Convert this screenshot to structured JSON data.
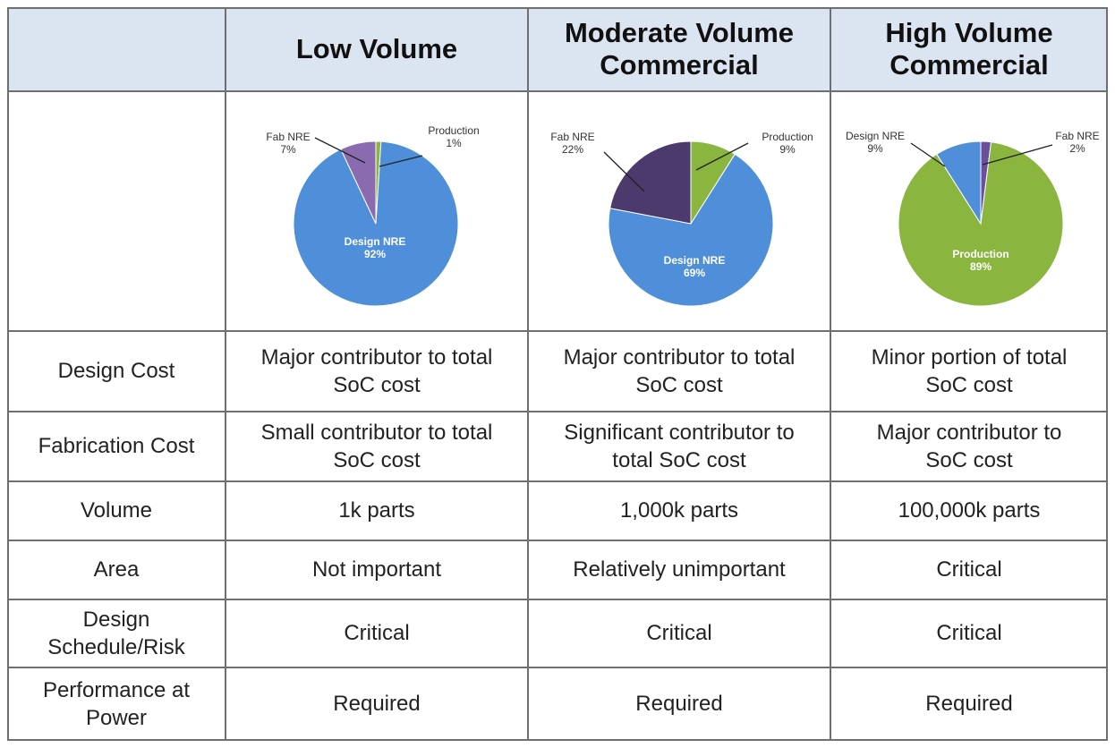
{
  "header": {
    "corner": "",
    "columns": [
      "Low Volume",
      "Moderate Volume Commercial",
      "High Volume Commercial"
    ]
  },
  "rows": [
    {
      "label": "Design Cost",
      "values": [
        "Major contributor to total SoC cost",
        "Major contributor to total SoC cost",
        "Minor portion of total SoC cost"
      ]
    },
    {
      "label": "Fabrication Cost",
      "values": [
        "Small contributor to total SoC cost",
        "Significant contributor to total SoC cost",
        "Major contributor to SoC cost"
      ]
    },
    {
      "label": "Volume",
      "values": [
        "1k parts",
        "1,000k parts",
        "100,000k parts"
      ]
    },
    {
      "label": "Area",
      "values": [
        "Not important",
        "Relatively unimportant",
        "Critical"
      ]
    },
    {
      "label": "Design Schedule/Risk",
      "values": [
        "Critical",
        "Critical",
        "Critical"
      ]
    },
    {
      "label": "Performance at Power",
      "values": [
        "Required",
        "Required",
        "Required"
      ]
    }
  ],
  "colors": {
    "design_nre": "#4f8fd9",
    "fab_nre_low": "#8a6bb0",
    "fab_nre_mod": "#4b3a6b",
    "production": "#8ab53f",
    "header_bg": "#dbe5f1"
  },
  "chart_data": [
    {
      "type": "pie",
      "title": "Low Volume",
      "slices": [
        {
          "label": "Production",
          "value": 1,
          "value_label": "1%",
          "color": "#8ab53f"
        },
        {
          "label": "Design NRE",
          "value": 92,
          "value_label": "92%",
          "color": "#4f8fd9"
        },
        {
          "label": "Fab NRE",
          "value": 7,
          "value_label": "7%",
          "color": "#8a6bb0"
        }
      ]
    },
    {
      "type": "pie",
      "title": "Moderate Volume Commercial",
      "slices": [
        {
          "label": "Design NRE",
          "value": 69,
          "value_label": "69%",
          "color": "#4f8fd9"
        },
        {
          "label": "Fab NRE",
          "value": 22,
          "value_label": "22%",
          "color": "#4b3a6b"
        },
        {
          "label": "Production",
          "value": 9,
          "value_label": "9%",
          "color": "#8ab53f"
        }
      ]
    },
    {
      "type": "pie",
      "title": "High Volume Commercial",
      "slices": [
        {
          "label": "Production",
          "value": 89,
          "value_label": "89%",
          "color": "#8ab53f"
        },
        {
          "label": "Design NRE",
          "value": 9,
          "value_label": "9%",
          "color": "#4f8fd9"
        },
        {
          "label": "Fab NRE",
          "value": 2,
          "value_label": "2%",
          "color": "#6a4f9c"
        }
      ]
    }
  ]
}
